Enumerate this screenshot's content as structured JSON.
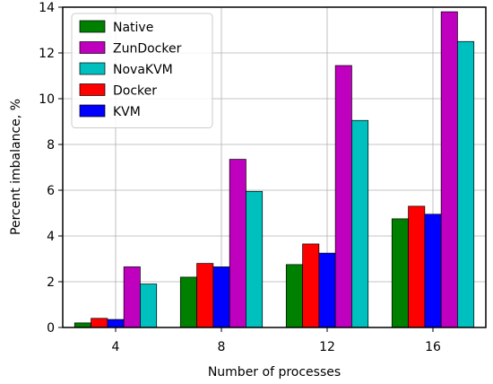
{
  "chart_data": {
    "type": "bar",
    "title": "",
    "xlabel": "Number of processes",
    "ylabel": "Percent imbalance, %",
    "categories": [
      "4",
      "8",
      "12",
      "16"
    ],
    "ylim": [
      0,
      14
    ],
    "yticks": [
      0,
      2,
      4,
      6,
      8,
      10,
      12,
      14
    ],
    "grid": true,
    "legend_position": "top-left",
    "bar_order": [
      "Native",
      "Docker",
      "KVM",
      "ZunDocker",
      "NovaKVM"
    ],
    "series": [
      {
        "name": "Native",
        "color": "#008000",
        "values": [
          0.2,
          2.2,
          2.75,
          4.75
        ]
      },
      {
        "name": "ZunDocker",
        "color": "#bf00bf",
        "values": [
          2.65,
          7.35,
          11.45,
          13.8
        ]
      },
      {
        "name": "NovaKVM",
        "color": "#00bfbf",
        "values": [
          1.9,
          5.95,
          9.05,
          12.5
        ]
      },
      {
        "name": "Docker",
        "color": "#ff0000",
        "values": [
          0.4,
          2.8,
          3.65,
          5.3
        ]
      },
      {
        "name": "KVM",
        "color": "#0000ff",
        "values": [
          0.35,
          2.65,
          3.25,
          4.95
        ]
      }
    ]
  }
}
